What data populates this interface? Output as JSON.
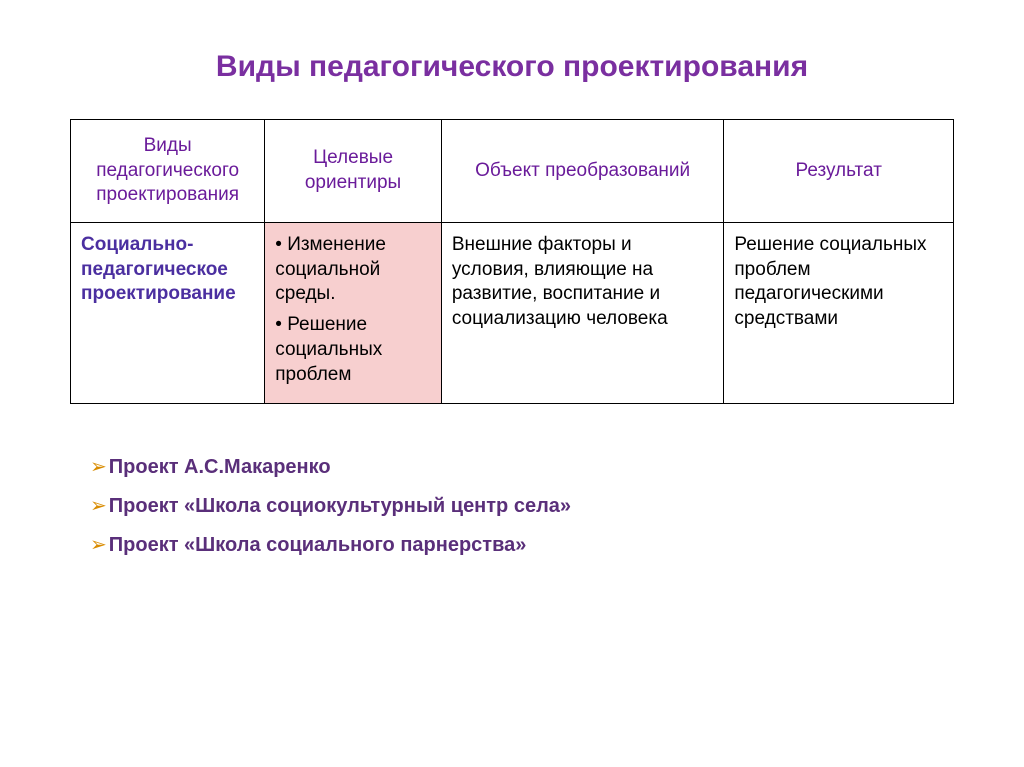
{
  "colors": {
    "title": "#7a2fa0",
    "header_text": "#6a1b9a",
    "row_type_text": "#4b2fa0",
    "highlight_bg": "#f7cfcf",
    "arrow": "#d98c00",
    "example_text": "#5a2f7a",
    "border": "#000000",
    "background": "#ffffff"
  },
  "title": "Виды педагогического проектирования",
  "table": {
    "headers": [
      "Виды педагогического проектирования",
      "Целевые ориентиры",
      "Объект преобразований",
      "Результат"
    ],
    "row": {
      "type": "Социально-педагогическое проектирование",
      "goals": [
        "Изменение социальной среды.",
        "Решение социальных проблем"
      ],
      "object": "Внешние факторы и условия, влияющие на развитие, воспитание и социализацию человека",
      "result": "Решение социальных проблем педагогическими средствами"
    }
  },
  "examples": [
    "Проект А.С.Макаренко",
    "Проект «Школа социокультурный центр села»",
    "Проект «Школа социального парнерства»"
  ],
  "typography": {
    "title_fontsize": 30,
    "cell_fontsize": 19,
    "example_fontsize": 20
  }
}
